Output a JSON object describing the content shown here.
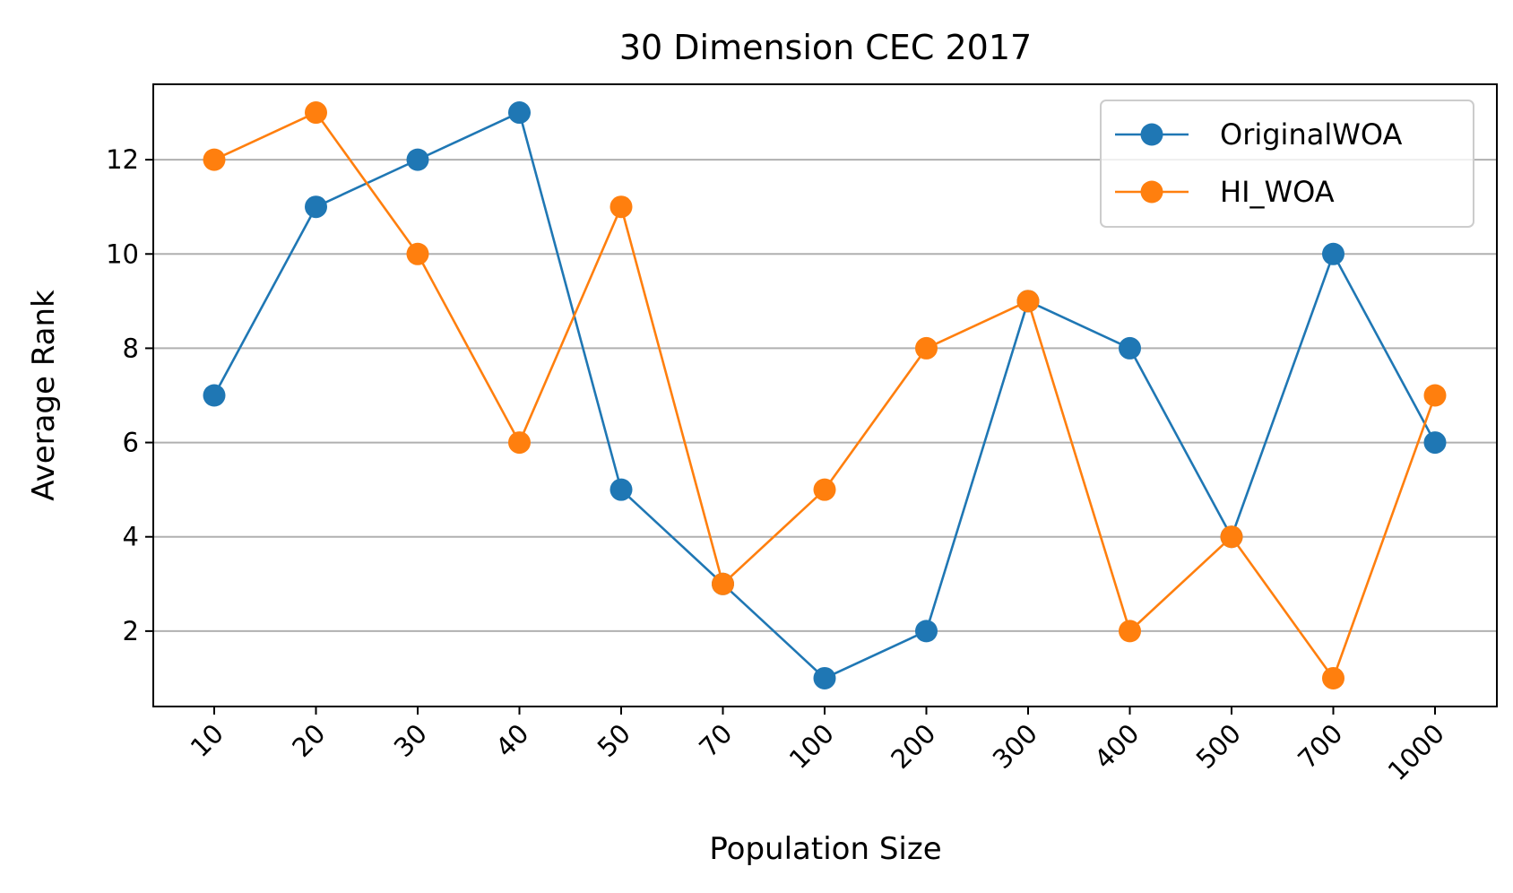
{
  "chart_data": {
    "type": "line",
    "title": "30 Dimension CEC 2017",
    "xlabel": "Population Size",
    "ylabel": "Average Rank",
    "categories": [
      "10",
      "20",
      "30",
      "40",
      "50",
      "70",
      "100",
      "200",
      "300",
      "400",
      "500",
      "700",
      "1000"
    ],
    "yticks": [
      "2",
      "4",
      "6",
      "8",
      "10",
      "12"
    ],
    "ylim": [
      0.4,
      13.6
    ],
    "grid": "y",
    "legend_position": "top-right",
    "series": [
      {
        "name": "OriginalWOA",
        "color": "#1f77b4",
        "values": [
          7,
          11,
          12,
          13,
          5,
          3,
          1,
          2,
          9,
          8,
          4,
          10,
          6
        ]
      },
      {
        "name": "HI_WOA",
        "color": "#ff7f0e",
        "values": [
          12,
          13,
          10,
          6,
          11,
          3,
          5,
          8,
          9,
          2,
          4,
          1,
          7
        ]
      }
    ]
  }
}
